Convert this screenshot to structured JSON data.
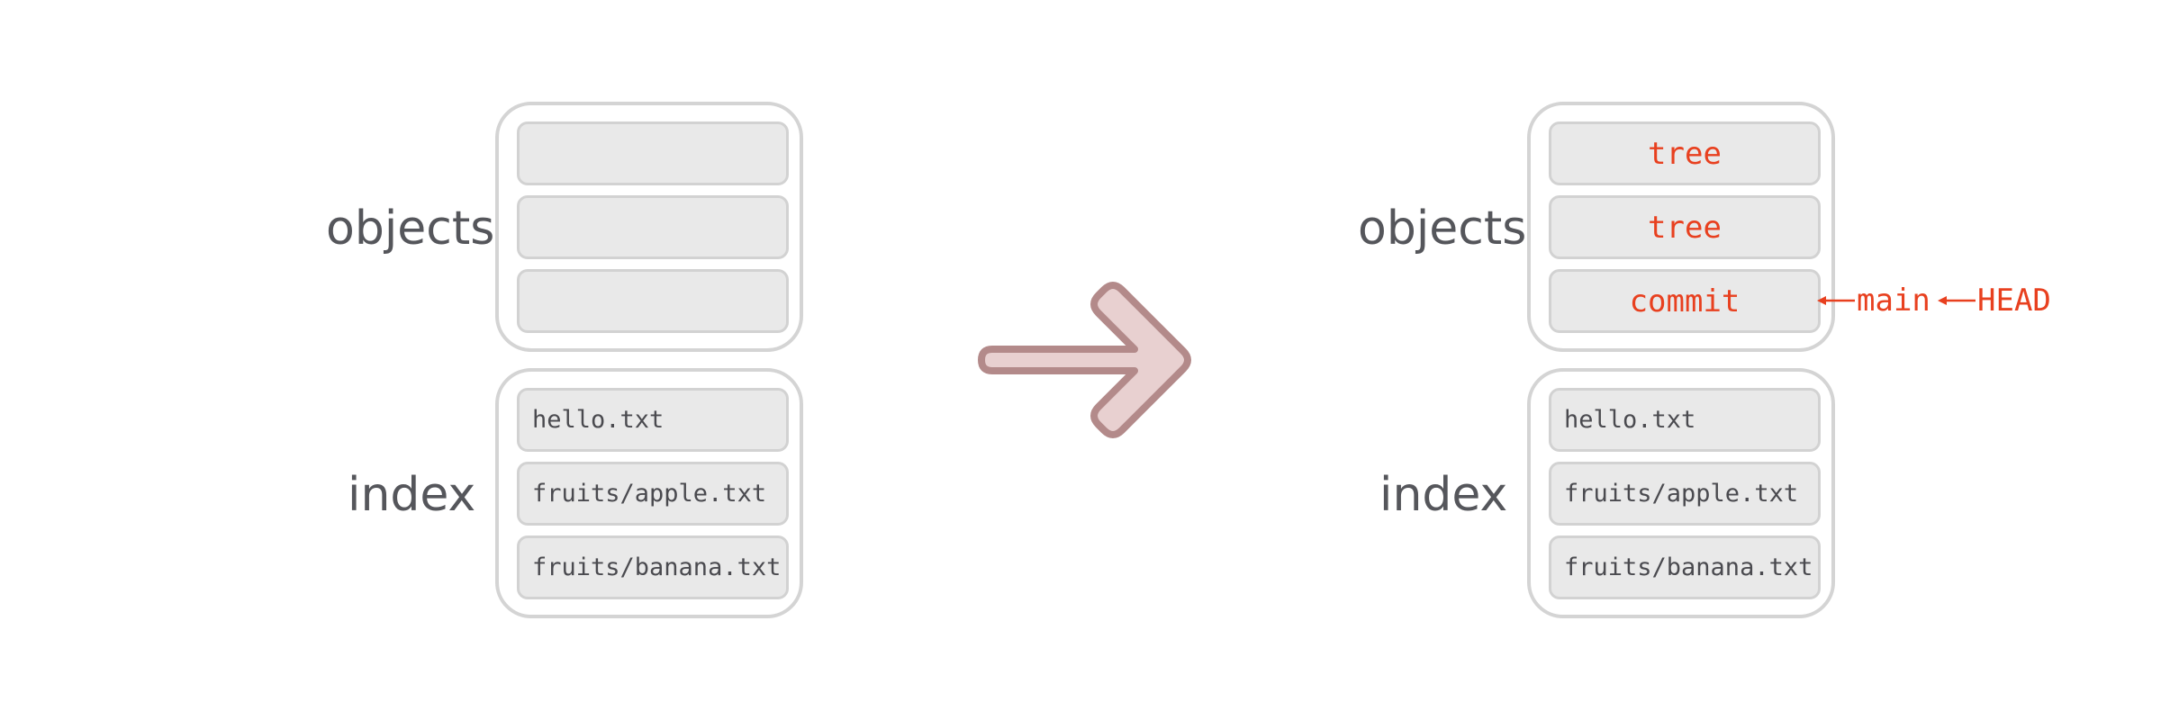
{
  "colors": {
    "label_text": "#55565b",
    "container_border": "#d4d4d4",
    "slot_fill": "#e9e9e9",
    "slot_border": "#d2d2d2",
    "file_text": "#4a4a4f",
    "highlight": "#e8401f",
    "arrow_fill": "#e8d0d0",
    "arrow_stroke": "#b38a8a"
  },
  "before": {
    "objects_label": "objects",
    "index_label": "index",
    "objects": [
      "",
      "",
      ""
    ],
    "index": [
      "hello.txt",
      "fruits/apple.txt",
      "fruits/banana.txt"
    ]
  },
  "after": {
    "objects_label": "objects",
    "index_label": "index",
    "objects": [
      "tree",
      "tree",
      "commit"
    ],
    "index": [
      "hello.txt",
      "fruits/apple.txt",
      "fruits/banana.txt"
    ],
    "refs": {
      "branch": "main",
      "head": "HEAD"
    }
  },
  "transition_icon": "right-arrow-icon"
}
